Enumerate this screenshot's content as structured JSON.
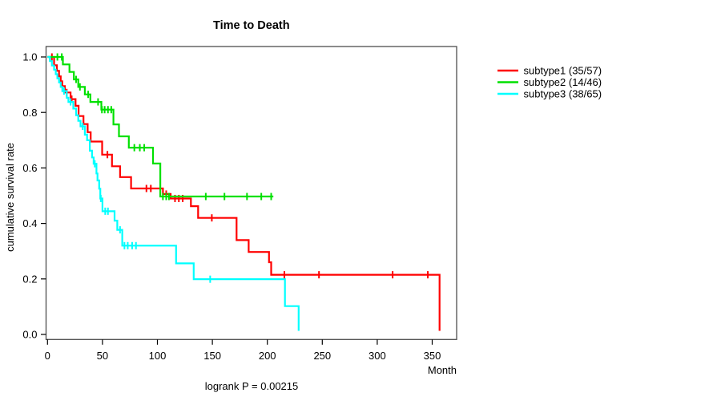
{
  "title": "Time to Death",
  "axes": {
    "x_label": "Month",
    "y_label": "cumulative survival rate"
  },
  "annotation": "logrank P = 0.00215",
  "legend": {
    "position": "right"
  },
  "chart_data": {
    "type": "line",
    "subtype": "kaplan-meier-step",
    "title": "Time to Death",
    "xlabel": "Month",
    "ylabel": "cumulative survival rate",
    "annotation": "logrank P = 0.00215",
    "xlim": [
      0,
      372
    ],
    "ylim": [
      0.0,
      1.0
    ],
    "xticks": [
      0,
      50,
      100,
      150,
      200,
      250,
      300,
      350
    ],
    "yticks": [
      0.0,
      0.2,
      0.4,
      0.6,
      0.8,
      1.0
    ],
    "grid": false,
    "legend_position": "right",
    "series": [
      {
        "name": "subtype1 (35/57)",
        "events": 35,
        "total": 57,
        "color": "#ff0000",
        "steps": [
          [
            0,
            1.0
          ],
          [
            6,
            0.97
          ],
          [
            8.5,
            0.95
          ],
          [
            10.5,
            0.93
          ],
          [
            12,
            0.912
          ],
          [
            13.4,
            0.895
          ],
          [
            15.8,
            0.872
          ],
          [
            21,
            0.848
          ],
          [
            25.5,
            0.824
          ],
          [
            28.3,
            0.787
          ],
          [
            32.7,
            0.758
          ],
          [
            36.5,
            0.729
          ],
          [
            39.3,
            0.695
          ],
          [
            49.7,
            0.648
          ],
          [
            58.7,
            0.606
          ],
          [
            66,
            0.567
          ],
          [
            76,
            0.526
          ],
          [
            105,
            0.506
          ],
          [
            112,
            0.49
          ],
          [
            130.5,
            0.462
          ],
          [
            137,
            0.42
          ],
          [
            172,
            0.34
          ],
          [
            183,
            0.297
          ],
          [
            201.5,
            0.26
          ],
          [
            203.5,
            0.215
          ],
          [
            356.7,
            0.013
          ]
        ],
        "censors": [
          [
            4,
            1.0
          ],
          [
            17.5,
            0.872
          ],
          [
            22,
            0.848
          ],
          [
            54.5,
            0.648
          ],
          [
            90,
            0.526
          ],
          [
            94,
            0.526
          ],
          [
            108,
            0.506
          ],
          [
            116,
            0.49
          ],
          [
            119.5,
            0.49
          ],
          [
            123,
            0.49
          ],
          [
            149.5,
            0.42
          ],
          [
            215.5,
            0.215
          ],
          [
            247,
            0.215
          ],
          [
            314,
            0.215
          ],
          [
            346,
            0.215
          ]
        ]
      },
      {
        "name": "subtype2 (14/46)",
        "events": 14,
        "total": 46,
        "color": "#00e000",
        "steps": [
          [
            0,
            1.0
          ],
          [
            14,
            0.973
          ],
          [
            20,
            0.946
          ],
          [
            24,
            0.919
          ],
          [
            28,
            0.892
          ],
          [
            34,
            0.865
          ],
          [
            39,
            0.838
          ],
          [
            49,
            0.81
          ],
          [
            60,
            0.757
          ],
          [
            65,
            0.714
          ],
          [
            74,
            0.673
          ],
          [
            96,
            0.616
          ],
          [
            102.6,
            0.497
          ],
          [
            205.5,
            0.497
          ]
        ],
        "censors": [
          [
            9,
            1.0
          ],
          [
            13,
            1.0
          ],
          [
            26,
            0.919
          ],
          [
            29.5,
            0.892
          ],
          [
            37,
            0.865
          ],
          [
            46,
            0.838
          ],
          [
            49.5,
            0.81
          ],
          [
            52,
            0.81
          ],
          [
            55,
            0.81
          ],
          [
            58,
            0.81
          ],
          [
            79,
            0.673
          ],
          [
            84,
            0.673
          ],
          [
            88,
            0.673
          ],
          [
            105,
            0.497
          ],
          [
            108,
            0.497
          ],
          [
            110.5,
            0.497
          ],
          [
            144,
            0.497
          ],
          [
            161,
            0.497
          ],
          [
            181.5,
            0.497
          ],
          [
            194.5,
            0.497
          ],
          [
            203.5,
            0.497
          ]
        ]
      },
      {
        "name": "subtype3 (38/65)",
        "events": 38,
        "total": 65,
        "color": "#00ffff",
        "steps": [
          [
            0,
            1.0
          ],
          [
            2.2,
            0.985
          ],
          [
            4,
            0.969
          ],
          [
            6,
            0.954
          ],
          [
            7.5,
            0.938
          ],
          [
            9,
            0.923
          ],
          [
            10.5,
            0.908
          ],
          [
            12,
            0.892
          ],
          [
            13.5,
            0.877
          ],
          [
            17.5,
            0.853
          ],
          [
            19,
            0.838
          ],
          [
            23.5,
            0.814
          ],
          [
            26,
            0.79
          ],
          [
            28,
            0.77
          ],
          [
            30,
            0.75
          ],
          [
            34,
            0.72
          ],
          [
            36,
            0.7
          ],
          [
            38.5,
            0.662
          ],
          [
            40.5,
            0.638
          ],
          [
            42,
            0.615
          ],
          [
            44.5,
            0.58
          ],
          [
            45.5,
            0.555
          ],
          [
            47,
            0.525
          ],
          [
            48,
            0.49
          ],
          [
            50,
            0.444
          ],
          [
            61,
            0.41
          ],
          [
            63.5,
            0.377
          ],
          [
            68,
            0.32
          ],
          [
            117,
            0.256
          ],
          [
            133,
            0.199
          ],
          [
            216,
            0.102
          ],
          [
            228.5,
            0.013
          ]
        ],
        "censors": [
          [
            15,
            0.877
          ],
          [
            21,
            0.838
          ],
          [
            32,
            0.75
          ],
          [
            43,
            0.615
          ],
          [
            48.5,
            0.49
          ],
          [
            52.5,
            0.444
          ],
          [
            55,
            0.444
          ],
          [
            66,
            0.377
          ],
          [
            70,
            0.32
          ],
          [
            73,
            0.32
          ],
          [
            77,
            0.32
          ],
          [
            80.5,
            0.32
          ],
          [
            148,
            0.199
          ]
        ]
      }
    ]
  }
}
